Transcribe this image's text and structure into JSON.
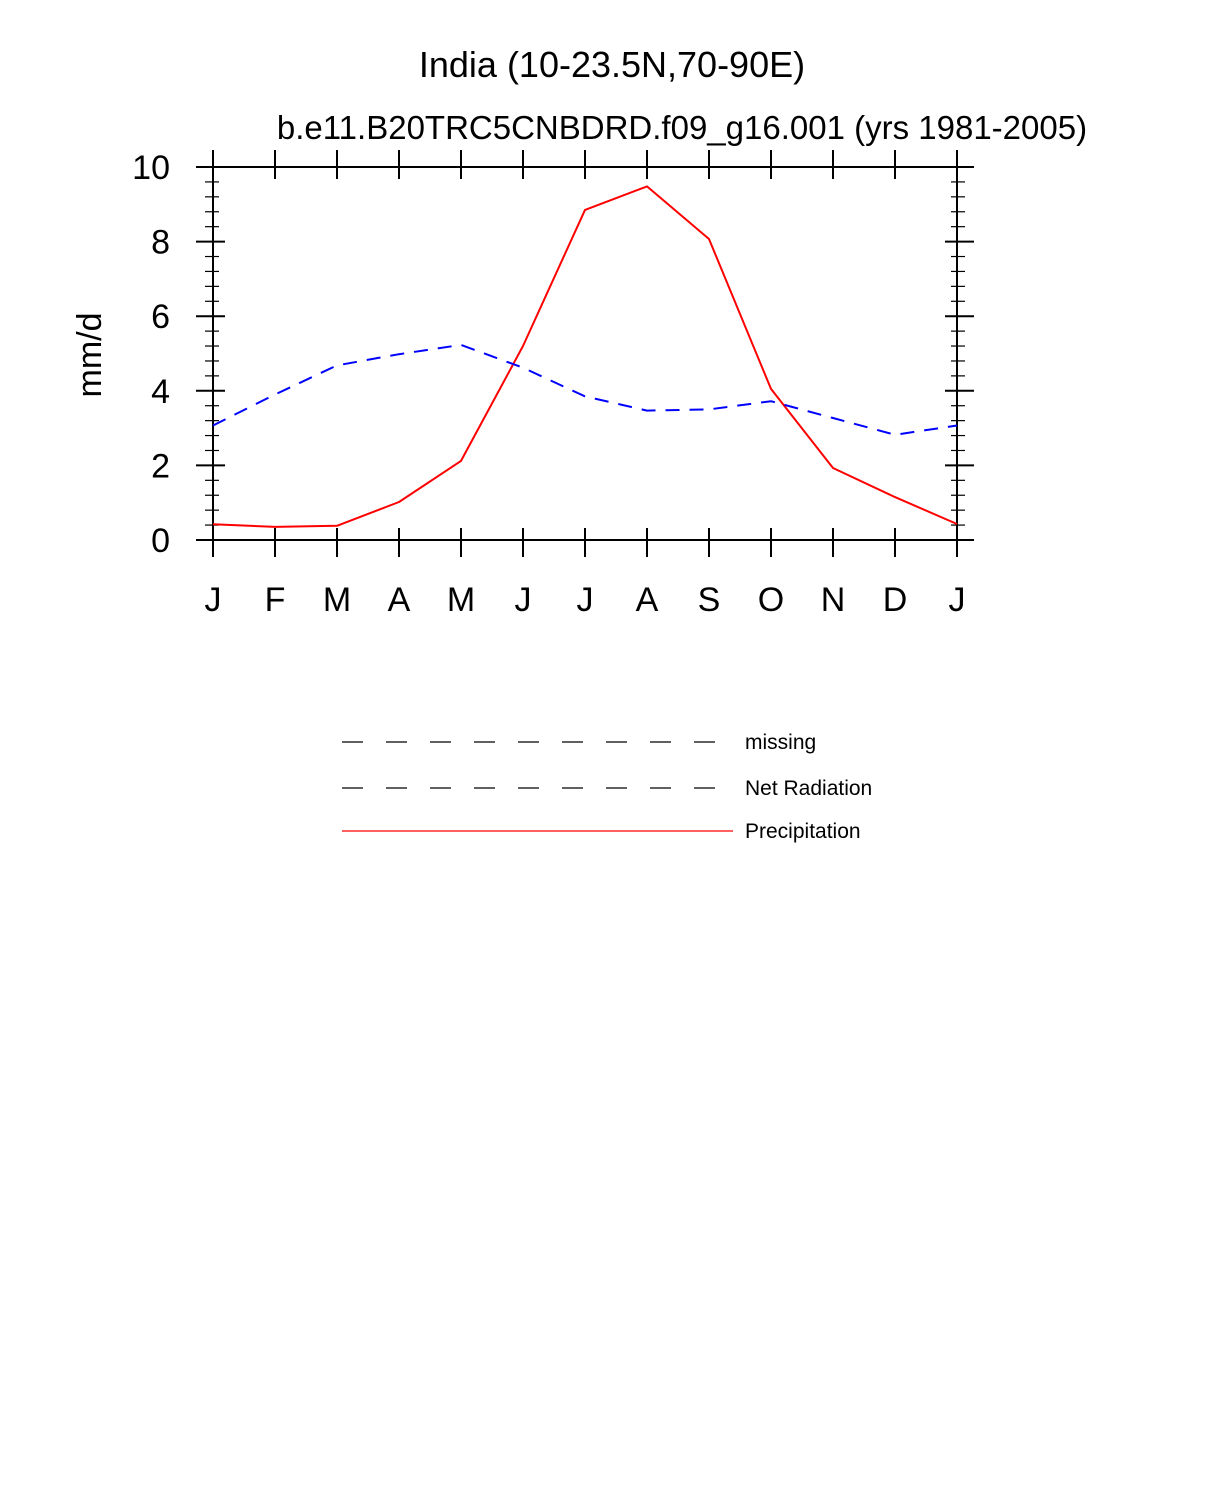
{
  "chart_data": {
    "type": "line",
    "title": "India (10-23.5N,70-90E)",
    "subtitle": "b.e11.B20TRC5CNBDRD.f09_g16.001 (yrs 1981-2005)",
    "xlabel": "",
    "ylabel": "mm/d",
    "x": [
      "J",
      "F",
      "M",
      "A",
      "M",
      "J",
      "J",
      "A",
      "S",
      "O",
      "N",
      "D",
      "J"
    ],
    "ylim": [
      0,
      10
    ],
    "yticks": [
      0,
      2,
      4,
      6,
      8,
      10
    ],
    "series": [
      {
        "name": "Precipitation",
        "color": "#ff0000",
        "style": "solid",
        "values": [
          0.42,
          0.35,
          0.38,
          1.02,
          2.12,
          5.2,
          8.85,
          9.48,
          8.07,
          4.05,
          1.93,
          1.15,
          0.43
        ]
      },
      {
        "name": "Net Radiation",
        "color": "#0000ff",
        "style": "dashed",
        "values": [
          3.07,
          3.9,
          4.68,
          4.98,
          5.23,
          4.62,
          3.85,
          3.47,
          3.5,
          3.72,
          3.27,
          2.82,
          3.07
        ]
      }
    ],
    "legend": {
      "placement": "below",
      "entries": [
        {
          "label": "missing",
          "color": "#000000",
          "style": "dashed"
        },
        {
          "label": "Net Radiation",
          "color": "#000000",
          "style": "dashed"
        },
        {
          "label": "Precipitation",
          "color": "#ff0000",
          "style": "solid"
        }
      ]
    }
  }
}
